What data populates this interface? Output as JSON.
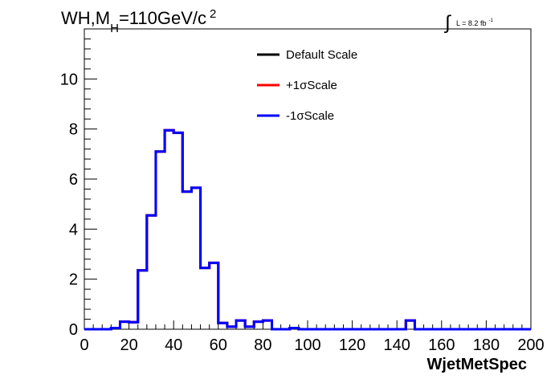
{
  "chart_data": {
    "type": "line",
    "style": "step-histogram",
    "title": {
      "main": "WH,M",
      "subscript": "H",
      "rest": "=110GeV/c",
      "superscript": "2"
    },
    "luminosity": {
      "integral_symbol": "∫",
      "text": "L = 8.2 fb",
      "superscript": "-1"
    },
    "xlabel": "WjetMetSpec",
    "ylabel": "",
    "xlim": [
      0,
      200
    ],
    "ylim": [
      0,
      12
    ],
    "x_ticks": [
      0,
      20,
      40,
      60,
      80,
      100,
      120,
      140,
      160,
      180,
      200
    ],
    "x_tick_labels": [
      "0",
      "20",
      "40",
      "60",
      "80",
      "100",
      "120",
      "140",
      "160",
      "180",
      "200"
    ],
    "y_ticks": [
      0,
      2,
      4,
      6,
      8,
      10
    ],
    "y_tick_labels": [
      "0",
      "2",
      "4",
      "6",
      "8",
      "10"
    ],
    "grid": false,
    "legend_position": "top-center",
    "bin_width": 4,
    "bin_edges_start": 0,
    "series": [
      {
        "name": "Default Scale",
        "color": "#000000",
        "values": [
          0,
          0,
          0,
          0.05,
          0.3,
          0.28,
          2.35,
          4.55,
          7.1,
          7.95,
          7.85,
          5.5,
          5.65,
          2.45,
          2.65,
          0.25,
          0.1,
          0.35,
          0.1,
          0.3,
          0.35,
          0,
          0,
          0.05,
          0,
          0,
          0,
          0,
          0,
          0,
          0,
          0,
          0,
          0,
          0,
          0,
          0.35,
          0,
          0,
          0,
          0,
          0,
          0,
          0,
          0,
          0,
          0,
          0,
          0,
          0
        ]
      },
      {
        "name": "+1σScale",
        "color": "#ff0000",
        "values": [
          0,
          0,
          0,
          0.05,
          0.3,
          0.28,
          2.35,
          4.55,
          7.1,
          7.95,
          7.85,
          5.5,
          5.65,
          2.45,
          2.65,
          0.25,
          0.1,
          0.35,
          0.1,
          0.3,
          0.35,
          0,
          0,
          0.05,
          0,
          0,
          0,
          0,
          0,
          0,
          0,
          0,
          0,
          0,
          0,
          0,
          0.35,
          0,
          0,
          0,
          0,
          0,
          0,
          0,
          0,
          0,
          0,
          0,
          0,
          0
        ]
      },
      {
        "name": "-1σScale",
        "color": "#0000ff",
        "values": [
          0,
          0,
          0,
          0.05,
          0.3,
          0.28,
          2.35,
          4.55,
          7.1,
          7.95,
          7.85,
          5.5,
          5.65,
          2.45,
          2.65,
          0.25,
          0.1,
          0.35,
          0.1,
          0.3,
          0.35,
          0,
          0,
          0.05,
          0,
          0,
          0,
          0,
          0,
          0,
          0,
          0,
          0,
          0,
          0,
          0,
          0.35,
          0,
          0,
          0,
          0,
          0,
          0,
          0,
          0,
          0,
          0,
          0,
          0,
          0
        ]
      }
    ]
  }
}
